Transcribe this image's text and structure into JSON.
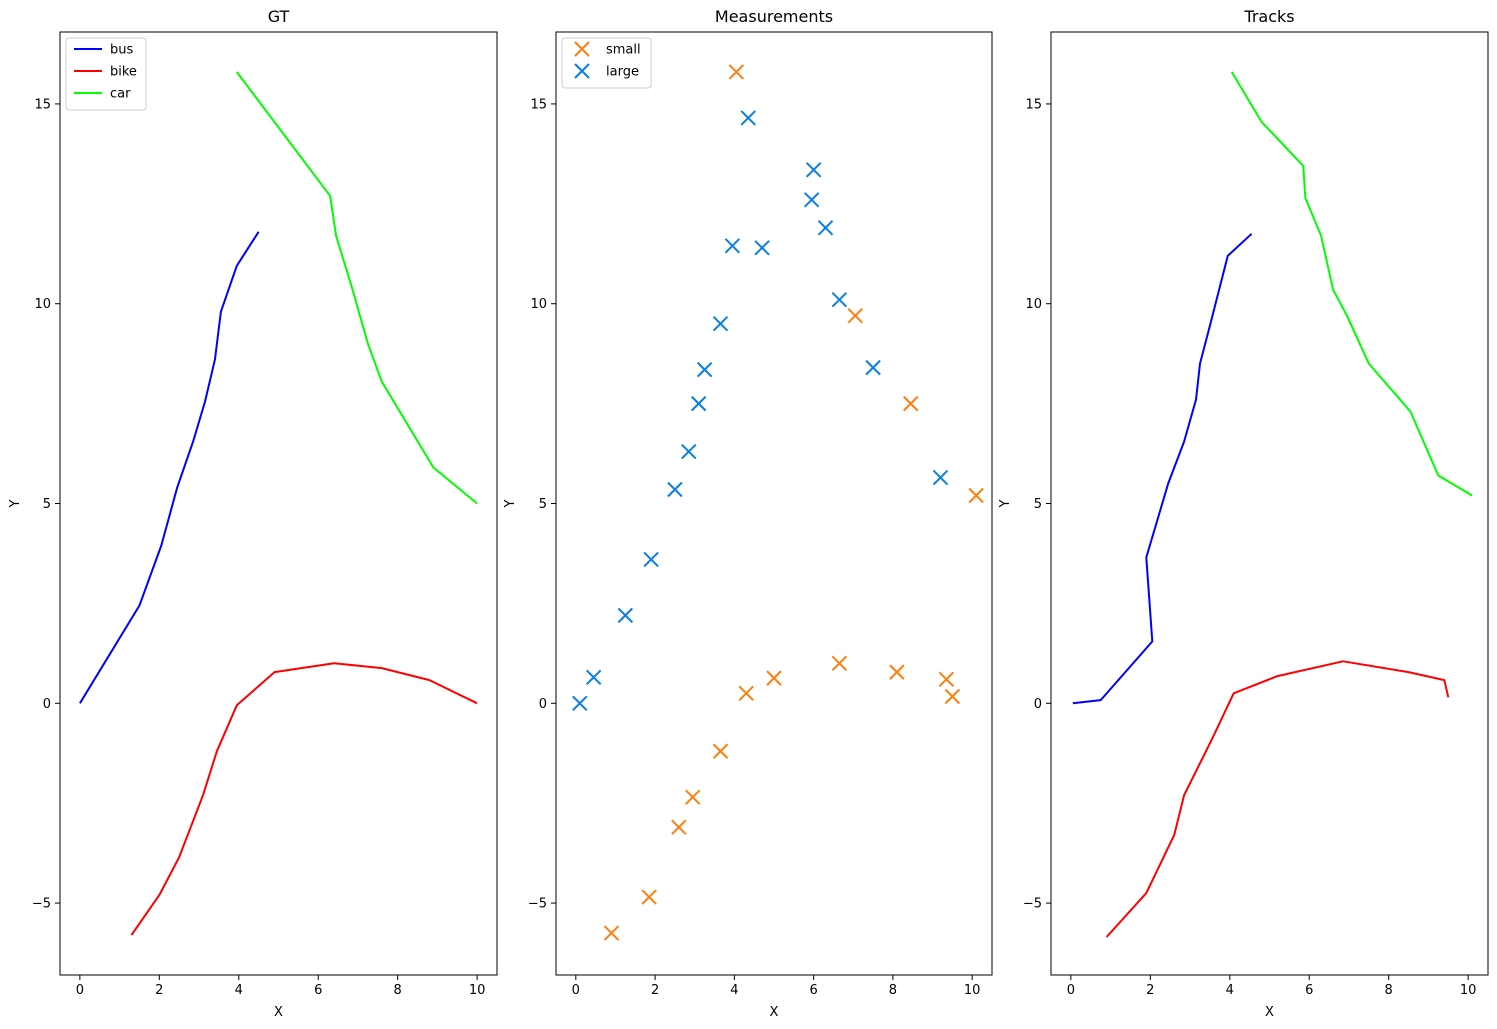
{
  "chart_data": [
    {
      "type": "line",
      "title": "GT",
      "xlabel": "X",
      "ylabel": "Y",
      "xlim": [
        -0.5,
        10.5
      ],
      "ylim": [
        -6.8,
        16.8
      ],
      "xticks": [
        0,
        2,
        4,
        6,
        8,
        10
      ],
      "yticks": [
        -5,
        0,
        5,
        10,
        15
      ],
      "ytick_labels": [
        "−5",
        "0",
        "5",
        "10",
        "15"
      ],
      "grid": false,
      "legend": "top-left",
      "series": [
        {
          "name": "bus",
          "color": "#0000ff",
          "points": [
            [
              0,
              0
            ],
            [
              1.5,
              2.45
            ],
            [
              2.05,
              3.95
            ],
            [
              2.45,
              5.4
            ],
            [
              2.85,
              6.55
            ],
            [
              3.15,
              7.55
            ],
            [
              3.4,
              8.6
            ],
            [
              3.55,
              9.8
            ],
            [
              3.95,
              10.95
            ],
            [
              4.5,
              11.8
            ]
          ]
        },
        {
          "name": "bike",
          "color": "#ff0000",
          "points": [
            [
              1.3,
              -5.8
            ],
            [
              2.0,
              -4.8
            ],
            [
              2.5,
              -3.85
            ],
            [
              3.1,
              -2.3
            ],
            [
              3.45,
              -1.2
            ],
            [
              3.95,
              -0.05
            ],
            [
              4.9,
              0.78
            ],
            [
              6.4,
              1.0
            ],
            [
              7.6,
              0.88
            ],
            [
              8.8,
              0.58
            ],
            [
              10,
              0
            ]
          ]
        },
        {
          "name": "car",
          "color": "#00ff00",
          "points": [
            [
              3.95,
              15.8
            ],
            [
              6.3,
              12.7
            ],
            [
              6.45,
              11.7
            ],
            [
              6.85,
              10.4
            ],
            [
              7.25,
              9.0
            ],
            [
              7.6,
              8.05
            ],
            [
              8.9,
              5.9
            ],
            [
              10,
              5.0
            ]
          ]
        }
      ]
    },
    {
      "type": "scatter",
      "title": "Measurements",
      "xlabel": "X",
      "ylabel": "Y",
      "xlim": [
        -0.5,
        10.5
      ],
      "ylim": [
        -6.8,
        16.8
      ],
      "xticks": [
        0,
        2,
        4,
        6,
        8,
        10
      ],
      "yticks": [
        -5,
        0,
        5,
        10,
        15
      ],
      "ytick_labels": [
        "−5",
        "0",
        "5",
        "10",
        "15"
      ],
      "grid": false,
      "legend": "top-left",
      "marker": "x",
      "series": [
        {
          "name": "small",
          "color": "#ff7f0e",
          "points": [
            [
              4.05,
              15.8
            ],
            [
              7.05,
              9.7
            ],
            [
              8.45,
              7.5
            ],
            [
              10.1,
              5.2
            ],
            [
              0.9,
              -5.75
            ],
            [
              1.85,
              -4.85
            ],
            [
              2.6,
              -3.1
            ],
            [
              2.95,
              -2.35
            ],
            [
              3.65,
              -1.2
            ],
            [
              4.3,
              0.25
            ],
            [
              5.0,
              0.63
            ],
            [
              6.65,
              1.0
            ],
            [
              8.1,
              0.78
            ],
            [
              9.35,
              0.6
            ],
            [
              9.5,
              0.17
            ]
          ]
        },
        {
          "name": "large",
          "color": "#0a7fe0",
          "points": [
            [
              0.1,
              0
            ],
            [
              0.45,
              0.65
            ],
            [
              1.25,
              2.2
            ],
            [
              1.9,
              3.6
            ],
            [
              2.5,
              5.35
            ],
            [
              2.85,
              6.3
            ],
            [
              3.1,
              7.5
            ],
            [
              3.25,
              8.35
            ],
            [
              3.65,
              9.5
            ],
            [
              3.95,
              11.45
            ],
            [
              4.35,
              14.65
            ],
            [
              4.7,
              11.4
            ],
            [
              5.95,
              12.6
            ],
            [
              6.0,
              13.35
            ],
            [
              6.3,
              11.9
            ],
            [
              6.65,
              10.1
            ],
            [
              7.5,
              8.4
            ],
            [
              9.2,
              5.65
            ]
          ]
        }
      ]
    },
    {
      "type": "line",
      "title": "Tracks",
      "xlabel": "X",
      "ylabel": "Y",
      "xlim": [
        -0.5,
        10.5
      ],
      "ylim": [
        -6.8,
        16.8
      ],
      "xticks": [
        0,
        2,
        4,
        6,
        8,
        10
      ],
      "yticks": [
        -5,
        0,
        5,
        10,
        15
      ],
      "ytick_labels": [
        "−5",
        "0",
        "5",
        "10",
        "15"
      ],
      "grid": false,
      "series": [
        {
          "color": "#0000ff",
          "points": [
            [
              0.05,
              0
            ],
            [
              0.75,
              0.08
            ],
            [
              2.05,
              1.55
            ],
            [
              1.9,
              3.65
            ],
            [
              2.45,
              5.5
            ],
            [
              2.85,
              6.55
            ],
            [
              3.15,
              7.6
            ],
            [
              3.25,
              8.5
            ],
            [
              3.5,
              9.45
            ],
            [
              3.95,
              11.2
            ],
            [
              4.55,
              11.75
            ]
          ]
        },
        {
          "color": "#ff0000",
          "points": [
            [
              0.9,
              -5.85
            ],
            [
              1.9,
              -4.75
            ],
            [
              2.6,
              -3.3
            ],
            [
              2.85,
              -2.3
            ],
            [
              3.55,
              -0.9
            ],
            [
              4.1,
              0.25
            ],
            [
              5.2,
              0.68
            ],
            [
              6.85,
              1.05
            ],
            [
              8.5,
              0.78
            ],
            [
              9.4,
              0.58
            ],
            [
              9.5,
              0.15
            ]
          ]
        },
        {
          "color": "#00ff00",
          "points": [
            [
              4.05,
              15.8
            ],
            [
              4.8,
              14.55
            ],
            [
              5.85,
              13.45
            ],
            [
              5.9,
              12.65
            ],
            [
              6.3,
              11.7
            ],
            [
              6.6,
              10.35
            ],
            [
              6.95,
              9.7
            ],
            [
              7.5,
              8.5
            ],
            [
              8.55,
              7.3
            ],
            [
              9.25,
              5.7
            ],
            [
              10.1,
              5.2
            ]
          ]
        }
      ]
    }
  ]
}
